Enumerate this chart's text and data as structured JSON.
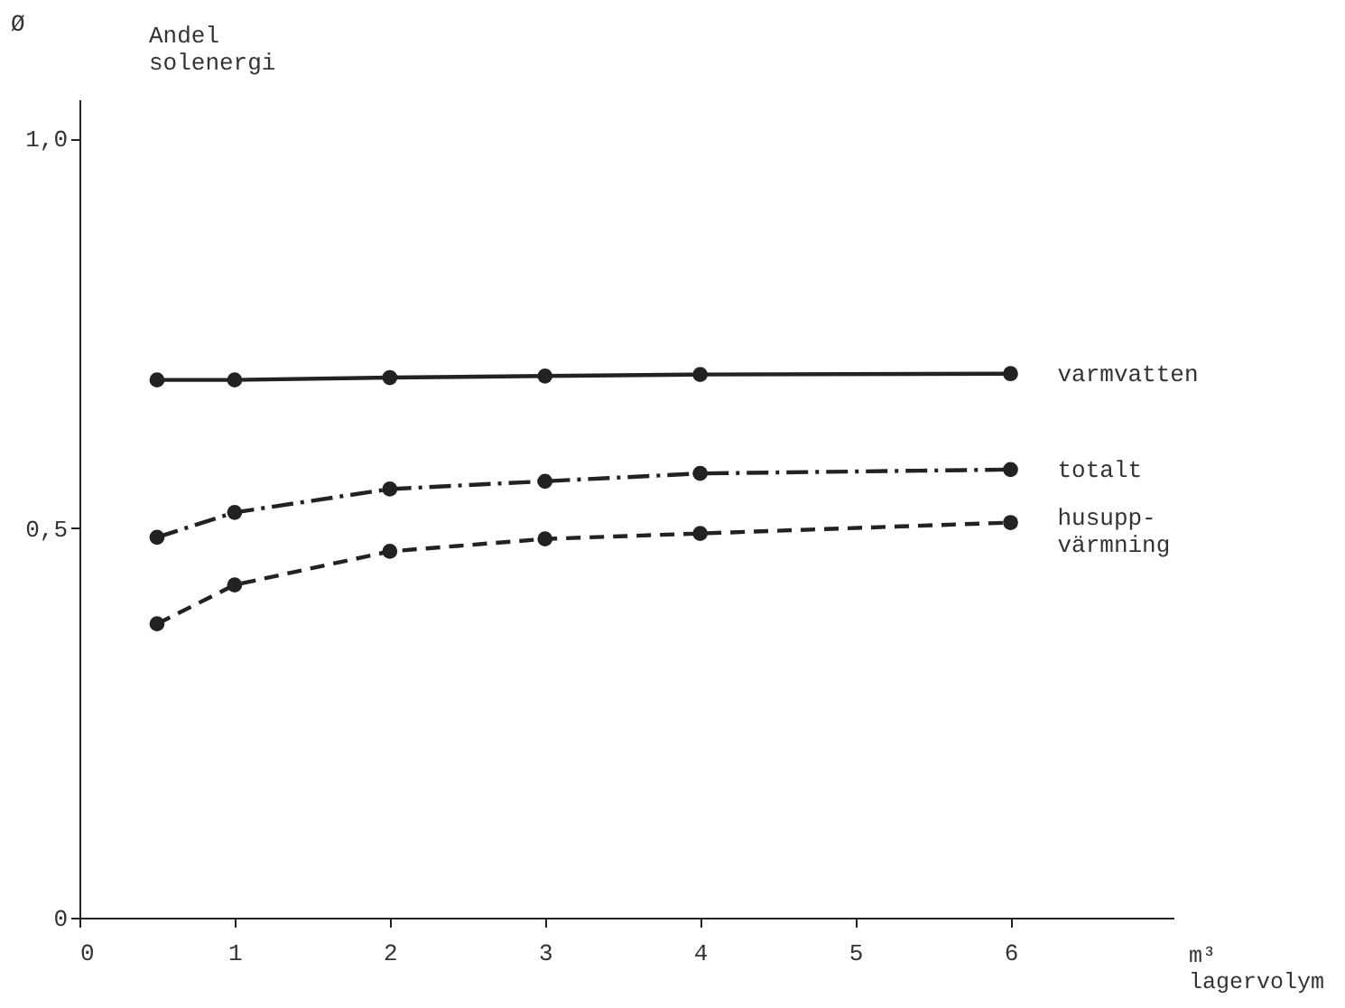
{
  "chart_data": {
    "type": "line",
    "ylabel": "Andel solenergi",
    "xlabel": "m³ lagervolym",
    "annotations": [
      "Ø"
    ],
    "xlim": [
      0,
      7.05
    ],
    "xticks": [
      0,
      1,
      2,
      3,
      4,
      5,
      6
    ],
    "ylim": [
      0,
      1.05
    ],
    "yticks": [
      {
        "value": 0,
        "label": "0"
      },
      {
        "value": 0.5,
        "label": "0,5"
      },
      {
        "value": 1.0,
        "label": "1,0"
      }
    ],
    "grid": false,
    "marker": "circle",
    "x": [
      0.5,
      1,
      2,
      3,
      4,
      6
    ],
    "series": [
      {
        "name": "varmvatten",
        "color": "#222222",
        "line_style": "solid",
        "values": [
          0.69,
          0.69,
          0.693,
          0.695,
          0.697,
          0.698
        ]
      },
      {
        "name": "totalt",
        "color": "#222222",
        "line_style": "dashdot",
        "values": [
          0.488,
          0.52,
          0.55,
          0.56,
          0.57,
          0.575
        ]
      },
      {
        "name": "husupp-värmning",
        "color": "#222222",
        "line_style": "dashed",
        "values": [
          0.377,
          0.427,
          0.47,
          0.486,
          0.493,
          0.507
        ]
      }
    ]
  }
}
